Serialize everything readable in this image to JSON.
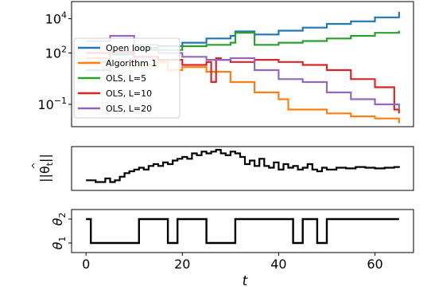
{
  "chart_data": [
    {
      "type": "line",
      "yscale": "log",
      "ylim": [
        0.005,
        100000
      ],
      "xlim": [
        -3,
        68
      ],
      "yticks": [
        {
          "value": 10000,
          "base": "10",
          "exp": "4"
        },
        {
          "value": 100,
          "base": "10",
          "exp": "2"
        },
        {
          "value": 0.1,
          "base": "10",
          "exp": "−1"
        }
      ],
      "legend_position": "upper-left",
      "series": [
        {
          "name": "Open loop",
          "color": "#1f77b4",
          "x": [
            0,
            5,
            10,
            15,
            20,
            25,
            30,
            31,
            35,
            40,
            45,
            50,
            55,
            60,
            65
          ],
          "y": [
            10,
            80,
            150,
            250,
            400,
            700,
            1000,
            1800,
            1200,
            2000,
            3000,
            5000,
            7000,
            12000,
            25000
          ]
        },
        {
          "name": "Algorithm 1",
          "color": "#ff7f0e",
          "x": [
            0,
            5,
            10,
            15,
            17,
            20,
            25,
            30,
            35,
            40,
            42,
            45,
            50,
            55,
            60,
            65
          ],
          "y": [
            50,
            100,
            20,
            30,
            10,
            15,
            8,
            2,
            0.5,
            0.2,
            0.05,
            0.05,
            0.03,
            0.02,
            0.015,
            0.008
          ]
        },
        {
          "name": "OLS, L=5",
          "color": "#2ca02c",
          "x": [
            0,
            5,
            10,
            15,
            20,
            25,
            30,
            31,
            35,
            40,
            45,
            50,
            55,
            60,
            65
          ],
          "y": [
            30,
            100,
            200,
            150,
            250,
            300,
            400,
            1500,
            300,
            400,
            500,
            700,
            1000,
            1500,
            2000
          ]
        },
        {
          "name": "OLS, L=10",
          "color": "#d62728",
          "x": [
            0,
            5,
            10,
            15,
            20,
            25,
            26,
            27,
            28,
            30,
            35,
            40,
            45,
            50,
            55,
            60,
            64,
            65
          ],
          "y": [
            100,
            120,
            60,
            40,
            20,
            30,
            2,
            50,
            40,
            30,
            40,
            30,
            20,
            10,
            3,
            1,
            0.05,
            0.03
          ]
        },
        {
          "name": "OLS, L=20",
          "color": "#9467bd",
          "x": [
            0,
            5,
            10,
            15,
            20,
            25,
            30,
            35,
            40,
            45,
            50,
            55,
            60,
            65
          ],
          "y": [
            500,
            1000,
            300,
            100,
            60,
            40,
            50,
            10,
            3,
            2,
            0.5,
            0.2,
            0.1,
            0.05
          ]
        }
      ]
    },
    {
      "type": "line",
      "ylabel_base": "||θ",
      "ylabel_sub": "t",
      "ylabel_end": "||",
      "ylim": [
        0,
        1
      ],
      "xlim": [
        -3,
        68
      ],
      "series": [
        {
          "color": "#000000",
          "x": [
            0,
            2,
            4,
            5,
            6,
            7,
            8,
            9,
            10,
            11,
            12,
            13,
            14,
            15,
            16,
            17,
            18,
            19,
            20,
            21,
            22,
            23,
            24,
            25,
            26,
            27,
            28,
            29,
            30,
            31,
            32,
            33,
            34,
            35,
            36,
            37,
            38,
            39,
            40,
            41,
            42,
            43,
            44,
            45,
            46,
            47,
            48,
            49,
            50,
            52,
            54,
            56,
            58,
            60,
            62,
            64,
            65
          ],
          "y": [
            0.15,
            0.1,
            0.2,
            0.1,
            0.15,
            0.25,
            0.35,
            0.4,
            0.45,
            0.5,
            0.45,
            0.55,
            0.6,
            0.55,
            0.65,
            0.6,
            0.7,
            0.75,
            0.8,
            0.75,
            0.9,
            0.85,
            0.95,
            0.9,
            0.95,
            1.0,
            0.9,
            0.85,
            0.95,
            0.9,
            0.8,
            0.6,
            0.7,
            0.55,
            0.75,
            0.55,
            0.5,
            0.65,
            0.45,
            0.6,
            0.5,
            0.55,
            0.45,
            0.5,
            0.6,
            0.45,
            0.4,
            0.5,
            0.45,
            0.5,
            0.48,
            0.52,
            0.5,
            0.48,
            0.5,
            0.52,
            0.5
          ]
        }
      ]
    },
    {
      "type": "line",
      "xlabel": "t",
      "xlim": [
        -3,
        68
      ],
      "ylim": [
        0.6,
        2.4
      ],
      "xticks": [
        0,
        20,
        40,
        60
      ],
      "ytick_labels": [
        {
          "value": 1,
          "base": "θ",
          "sub": "1"
        },
        {
          "value": 2,
          "base": "θ",
          "sub": "2"
        }
      ],
      "series": [
        {
          "color": "#000000",
          "x": [
            0,
            1,
            11,
            17,
            19,
            25,
            31,
            43,
            45,
            48,
            50,
            65
          ],
          "y": [
            2,
            1,
            2,
            1,
            2,
            1,
            2,
            1,
            2,
            1,
            2,
            2
          ]
        }
      ]
    }
  ]
}
